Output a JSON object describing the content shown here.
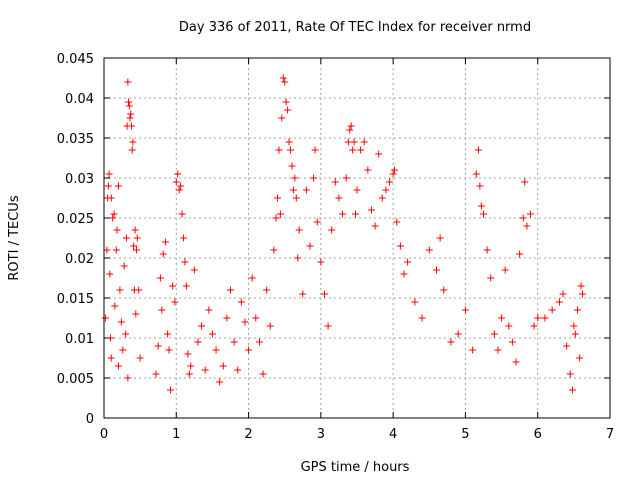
{
  "chart_data": {
    "type": "scatter",
    "title": "Day 336 of 2011, Rate Of TEC Index for receiver nrmd",
    "xlabel": "GPS time / hours",
    "ylabel": "ROTI / TECUs",
    "xlim": [
      0,
      7
    ],
    "ylim": [
      0,
      0.045
    ],
    "xticks": [
      "0",
      "1",
      "2",
      "3",
      "4",
      "5",
      "6",
      "7"
    ],
    "yticks": [
      "0",
      "0.005",
      "0.01",
      "0.015",
      "0.02",
      "0.025",
      "0.03",
      "0.035",
      "0.04",
      "0.045"
    ],
    "grid": true,
    "marker": "+",
    "color": "#ff0000",
    "series": [
      {
        "values": [
          [
            0.02,
            0.0125
          ],
          [
            0.04,
            0.021
          ],
          [
            0.05,
            0.0275
          ],
          [
            0.06,
            0.029
          ],
          [
            0.07,
            0.0305
          ],
          [
            0.08,
            0.018
          ],
          [
            0.09,
            0.01
          ],
          [
            0.1,
            0.0275
          ],
          [
            0.12,
            0.025
          ],
          [
            0.14,
            0.0255
          ],
          [
            0.15,
            0.014
          ],
          [
            0.17,
            0.021
          ],
          [
            0.18,
            0.0235
          ],
          [
            0.2,
            0.029
          ],
          [
            0.22,
            0.016
          ],
          [
            0.24,
            0.012
          ],
          [
            0.26,
            0.0085
          ],
          [
            0.28,
            0.019
          ],
          [
            0.3,
            0.0105
          ],
          [
            0.31,
            0.0225
          ],
          [
            0.32,
            0.0365
          ],
          [
            0.33,
            0.042
          ],
          [
            0.34,
            0.0395
          ],
          [
            0.35,
            0.039
          ],
          [
            0.36,
            0.0375
          ],
          [
            0.37,
            0.038
          ],
          [
            0.38,
            0.0365
          ],
          [
            0.39,
            0.0335
          ],
          [
            0.4,
            0.0345
          ],
          [
            0.41,
            0.0215
          ],
          [
            0.42,
            0.016
          ],
          [
            0.43,
            0.0235
          ],
          [
            0.44,
            0.013
          ],
          [
            0.45,
            0.021
          ],
          [
            0.46,
            0.0225
          ],
          [
            0.48,
            0.016
          ],
          [
            0.5,
            0.0075
          ],
          [
            0.33,
            0.005
          ],
          [
            0.2,
            0.0065
          ],
          [
            0.1,
            0.0075
          ],
          [
            0.72,
            0.0055
          ],
          [
            0.75,
            0.009
          ],
          [
            0.78,
            0.0175
          ],
          [
            0.8,
            0.0135
          ],
          [
            0.82,
            0.0205
          ],
          [
            0.85,
            0.022
          ],
          [
            0.88,
            0.0105
          ],
          [
            0.9,
            0.0085
          ],
          [
            0.92,
            0.0035
          ],
          [
            0.95,
            0.0165
          ],
          [
            0.98,
            0.0145
          ],
          [
            1.0,
            0.0295
          ],
          [
            1.02,
            0.0305
          ],
          [
            1.04,
            0.0285
          ],
          [
            1.06,
            0.029
          ],
          [
            1.08,
            0.0255
          ],
          [
            1.1,
            0.0225
          ],
          [
            1.12,
            0.0195
          ],
          [
            1.14,
            0.0165
          ],
          [
            1.16,
            0.008
          ],
          [
            1.18,
            0.0055
          ],
          [
            1.2,
            0.0065
          ],
          [
            1.25,
            0.0185
          ],
          [
            1.3,
            0.0095
          ],
          [
            1.35,
            0.0115
          ],
          [
            1.4,
            0.006
          ],
          [
            1.45,
            0.0135
          ],
          [
            1.5,
            0.0105
          ],
          [
            1.55,
            0.0085
          ],
          [
            1.6,
            0.0045
          ],
          [
            1.65,
            0.0065
          ],
          [
            1.7,
            0.0125
          ],
          [
            1.75,
            0.016
          ],
          [
            1.8,
            0.0095
          ],
          [
            1.85,
            0.006
          ],
          [
            1.9,
            0.0145
          ],
          [
            1.95,
            0.012
          ],
          [
            2.0,
            0.0085
          ],
          [
            2.05,
            0.0175
          ],
          [
            2.1,
            0.0125
          ],
          [
            2.15,
            0.0095
          ],
          [
            2.2,
            0.0055
          ],
          [
            2.25,
            0.016
          ],
          [
            2.3,
            0.0115
          ],
          [
            2.35,
            0.021
          ],
          [
            2.38,
            0.025
          ],
          [
            2.4,
            0.0275
          ],
          [
            2.42,
            0.0335
          ],
          [
            2.44,
            0.0255
          ],
          [
            2.46,
            0.0375
          ],
          [
            2.48,
            0.0425
          ],
          [
            2.5,
            0.042
          ],
          [
            2.52,
            0.0395
          ],
          [
            2.54,
            0.0385
          ],
          [
            2.56,
            0.0345
          ],
          [
            2.58,
            0.0335
          ],
          [
            2.6,
            0.0315
          ],
          [
            2.62,
            0.0285
          ],
          [
            2.64,
            0.03
          ],
          [
            2.66,
            0.0275
          ],
          [
            2.68,
            0.02
          ],
          [
            2.7,
            0.0235
          ],
          [
            2.75,
            0.0155
          ],
          [
            2.8,
            0.0285
          ],
          [
            2.85,
            0.0215
          ],
          [
            2.9,
            0.03
          ],
          [
            2.92,
            0.0335
          ],
          [
            2.95,
            0.0245
          ],
          [
            3.0,
            0.0195
          ],
          [
            3.05,
            0.0155
          ],
          [
            3.1,
            0.0115
          ],
          [
            3.15,
            0.0235
          ],
          [
            3.2,
            0.0295
          ],
          [
            3.25,
            0.0275
          ],
          [
            3.3,
            0.0255
          ],
          [
            3.35,
            0.03
          ],
          [
            3.38,
            0.0345
          ],
          [
            3.4,
            0.036
          ],
          [
            3.42,
            0.0365
          ],
          [
            3.44,
            0.0335
          ],
          [
            3.46,
            0.0345
          ],
          [
            3.48,
            0.0255
          ],
          [
            3.5,
            0.0285
          ],
          [
            3.55,
            0.0335
          ],
          [
            3.6,
            0.0345
          ],
          [
            3.65,
            0.031
          ],
          [
            3.7,
            0.026
          ],
          [
            3.75,
            0.024
          ],
          [
            3.8,
            0.033
          ],
          [
            3.85,
            0.0275
          ],
          [
            3.9,
            0.0285
          ],
          [
            3.95,
            0.0295
          ],
          [
            4.0,
            0.0305
          ],
          [
            4.02,
            0.031
          ],
          [
            4.05,
            0.0245
          ],
          [
            4.1,
            0.0215
          ],
          [
            4.15,
            0.018
          ],
          [
            4.2,
            0.0195
          ],
          [
            4.3,
            0.0145
          ],
          [
            4.4,
            0.0125
          ],
          [
            4.5,
            0.021
          ],
          [
            4.6,
            0.0185
          ],
          [
            4.65,
            0.0225
          ],
          [
            4.7,
            0.016
          ],
          [
            4.8,
            0.0095
          ],
          [
            4.9,
            0.0105
          ],
          [
            5.0,
            0.0135
          ],
          [
            5.1,
            0.0085
          ],
          [
            5.15,
            0.0305
          ],
          [
            5.18,
            0.0335
          ],
          [
            5.2,
            0.029
          ],
          [
            5.22,
            0.0265
          ],
          [
            5.25,
            0.0255
          ],
          [
            5.3,
            0.021
          ],
          [
            5.35,
            0.0175
          ],
          [
            5.4,
            0.0105
          ],
          [
            5.45,
            0.0085
          ],
          [
            5.5,
            0.0125
          ],
          [
            5.55,
            0.0185
          ],
          [
            5.6,
            0.0115
          ],
          [
            5.65,
            0.0095
          ],
          [
            5.7,
            0.007
          ],
          [
            5.75,
            0.0205
          ],
          [
            5.8,
            0.025
          ],
          [
            5.82,
            0.0295
          ],
          [
            5.85,
            0.024
          ],
          [
            5.9,
            0.0255
          ],
          [
            5.95,
            0.0115
          ],
          [
            6.0,
            0.0125
          ],
          [
            6.1,
            0.0125
          ],
          [
            6.2,
            0.0135
          ],
          [
            6.3,
            0.0145
          ],
          [
            6.35,
            0.0155
          ],
          [
            6.4,
            0.009
          ],
          [
            6.45,
            0.0055
          ],
          [
            6.48,
            0.0035
          ],
          [
            6.5,
            0.0115
          ],
          [
            6.55,
            0.0135
          ],
          [
            6.6,
            0.0165
          ],
          [
            6.62,
            0.0155
          ],
          [
            6.58,
            0.0075
          ],
          [
            6.52,
            0.0105
          ]
        ]
      }
    ]
  }
}
